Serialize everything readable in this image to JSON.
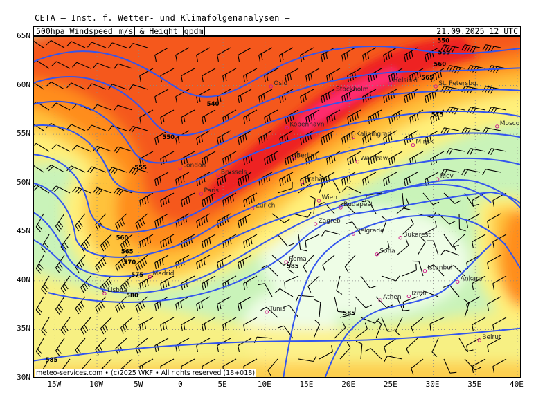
{
  "header": {
    "top_title": "CETA — Inst. f. Wetter- und Klimafolgenanalysen —",
    "parameter_prefix": "500hpa Windspeed",
    "unit_wind": "m/s",
    "connector": "&",
    "parameter_height": "Height",
    "unit_height": "gpdm",
    "valid_time": "21.09.2025 12 UTC"
  },
  "axes": {
    "lat_labels": [
      "65N",
      "60N",
      "55N",
      "50N",
      "45N",
      "40N",
      "35N",
      "30N"
    ],
    "lon_labels": [
      "15W",
      "10W",
      "5W",
      "0",
      "5E",
      "10E",
      "15E",
      "20E",
      "25E",
      "30E",
      "35E",
      "40E"
    ]
  },
  "colors": {
    "calm": "#c9f3b9",
    "very_light": "#eefde6",
    "light": "#fff07a",
    "moderate": "#ffc23a",
    "strong": "#ff8d1e",
    "very_strong": "#f5581a",
    "jet": "#ee2222",
    "jet_core": "#ff2a70",
    "contour": "#3355ee"
  },
  "cities": [
    {
      "name": "Oslo",
      "lon": 10.7,
      "lat": 59.9
    },
    {
      "name": "Stockholm",
      "lon": 18.1,
      "lat": 59.3
    },
    {
      "name": "Helsinki",
      "lon": 24.9,
      "lat": 60.2
    },
    {
      "name": "St. Petersbg.",
      "lon": 30.3,
      "lat": 59.9
    },
    {
      "name": "Kobenhavn",
      "lon": 12.6,
      "lat": 55.7
    },
    {
      "name": "Kaliningrad",
      "lon": 20.5,
      "lat": 54.7
    },
    {
      "name": "Minsk",
      "lon": 27.6,
      "lat": 53.9
    },
    {
      "name": "Moscow",
      "lon": 37.6,
      "lat": 55.8
    },
    {
      "name": "London",
      "lon": -0.1,
      "lat": 51.5
    },
    {
      "name": "Berlin",
      "lon": 13.4,
      "lat": 52.5
    },
    {
      "name": "Warszaw",
      "lon": 21.0,
      "lat": 52.2
    },
    {
      "name": "Brussels",
      "lon": 4.4,
      "lat": 50.8
    },
    {
      "name": "Praha",
      "lon": 14.4,
      "lat": 50.1
    },
    {
      "name": "Kiev",
      "lon": 30.5,
      "lat": 50.4
    },
    {
      "name": "Paris",
      "lon": 2.4,
      "lat": 48.9
    },
    {
      "name": "Wien",
      "lon": 16.4,
      "lat": 48.2
    },
    {
      "name": "Budapest",
      "lon": 19.0,
      "lat": 47.5
    },
    {
      "name": "Zurich",
      "lon": 8.5,
      "lat": 47.4
    },
    {
      "name": "Zagreb",
      "lon": 16.0,
      "lat": 45.8
    },
    {
      "name": "Belgrade",
      "lon": 20.5,
      "lat": 44.8
    },
    {
      "name": "Bukarest",
      "lon": 26.1,
      "lat": 44.4
    },
    {
      "name": "Sofia",
      "lon": 23.3,
      "lat": 42.7
    },
    {
      "name": "Roma",
      "lon": 12.5,
      "lat": 41.9
    },
    {
      "name": "Istanbul",
      "lon": 29.0,
      "lat": 41.0
    },
    {
      "name": "Ankara",
      "lon": 32.9,
      "lat": 39.9
    },
    {
      "name": "Madrid",
      "lon": -3.7,
      "lat": 40.4
    },
    {
      "name": "Lisboa",
      "lon": -9.1,
      "lat": 38.7
    },
    {
      "name": "Athen",
      "lon": 23.7,
      "lat": 38.0
    },
    {
      "name": "Izmir",
      "lon": 27.1,
      "lat": 38.4
    },
    {
      "name": "Tunis",
      "lon": 10.2,
      "lat": 36.8
    },
    {
      "name": "Beirut",
      "lon": 35.5,
      "lat": 33.9
    }
  ],
  "height_labels": [
    {
      "text": "540",
      "lon": 3.8,
      "lat": 57.9
    },
    {
      "text": "550",
      "lon": -1.5,
      "lat": 54.5
    },
    {
      "text": "555",
      "lon": -4.8,
      "lat": 51.4
    },
    {
      "text": "560",
      "lon": -7.0,
      "lat": 44.2
    },
    {
      "text": "565",
      "lon": -6.4,
      "lat": 42.8
    },
    {
      "text": "570",
      "lon": -6.1,
      "lat": 41.7
    },
    {
      "text": "575",
      "lon": -5.2,
      "lat": 40.4
    },
    {
      "text": "580",
      "lon": -5.8,
      "lat": 38.3
    },
    {
      "text": "585",
      "lon": 13.3,
      "lat": 41.3
    },
    {
      "text": "585",
      "lon": 20.0,
      "lat": 36.5
    },
    {
      "text": "585",
      "lon": -15.4,
      "lat": 31.7
    },
    {
      "text": "550",
      "lon": 31.2,
      "lat": 64.4
    },
    {
      "text": "555",
      "lon": 31.3,
      "lat": 63.2
    },
    {
      "text": "560",
      "lon": 30.8,
      "lat": 62.0
    },
    {
      "text": "565",
      "lon": 29.3,
      "lat": 60.6
    },
    {
      "text": "575",
      "lon": 30.5,
      "lat": 56.8
    }
  ],
  "footer": {
    "copyright": "meteo-services.com • (c)2025 WKF • All rights reserved (18+018)"
  }
}
